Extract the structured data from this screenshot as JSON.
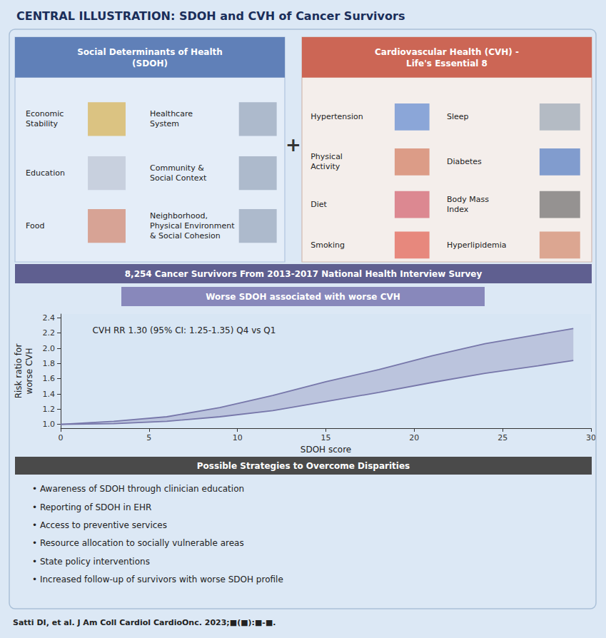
{
  "chart_data": {
    "type": "line",
    "title": "CENTRAL ILLUSTRATION: SDOH and CVH of Cancer Survivors",
    "subtitle": "Worse SDOH associated with worse CVH",
    "x_label": "SDOH score",
    "y_label": "Risk ratio for\nworse CVH",
    "x": [
      0,
      3,
      6,
      9,
      12,
      15,
      18,
      21,
      24,
      27,
      29
    ],
    "series": [
      {
        "color": "#7777aa",
        "values": [
          1.0,
          1.04,
          1.1,
          1.22,
          1.38,
          1.56,
          1.72,
          1.9,
          2.06,
          2.18,
          2.26
        ]
      },
      {
        "color": "#7777aa",
        "values": [
          1.0,
          1.01,
          1.04,
          1.1,
          1.18,
          1.3,
          1.42,
          1.55,
          1.67,
          1.77,
          1.84
        ]
      }
    ],
    "xlim": [
      0,
      30
    ],
    "xticks": [
      0,
      5,
      10,
      15,
      20,
      25,
      30
    ],
    "ylim": [
      0.95,
      2.45
    ],
    "yticks": [
      {
        "value": 1.0,
        "label": "1.0"
      },
      1.2,
      1.4,
      1.6,
      1.8,
      {
        "value": 2.0,
        "label": "2.0"
      },
      2.2,
      2.4
    ],
    "grid": false,
    "annotations": [
      "Social Determinants of Health\n(SDOH)",
      "Economic\nStability",
      "Healthcare\nSystem",
      "Education",
      "Community &\nSocial Context",
      "Food",
      "Neighborhood,\nPhysical Environment\n& Social Cohesion",
      "+",
      "Cardiovascular Health (CVH) -\nLife's Essential 8",
      "Hypertension",
      "Sleep",
      "Physical\nActivity",
      "Diabetes",
      "Diet",
      "Body Mass\nIndex",
      "Smoking",
      "Hyperlipidemia",
      "8,254 Cancer Survivors From 2013-2017 National Health Interview Survey",
      "CVH RR 1.30 (95% CI: 1.25-1.35) Q4 vs Q1",
      "Possible Strategies to Overcome Disparities",
      "• Awareness of SDOH through clinician education",
      "• Reporting of SDOH in EHR",
      "• Access to preventive services",
      "• Resource allocation to socially vulnerable areas",
      "• State policy interventions",
      "• Increased follow-up of survivors with worse SDOH profile",
      "Satti DI, et al. J Am Coll Cardiol CardioOnc. 2023;■(■):■-■."
    ]
  }
}
